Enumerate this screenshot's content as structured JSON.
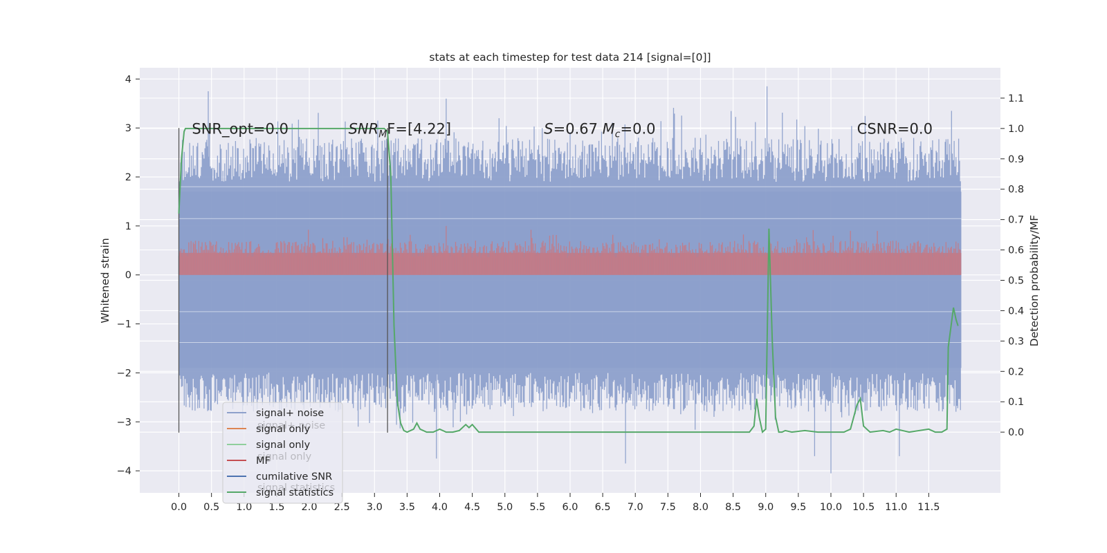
{
  "chart_data": {
    "type": "line",
    "title": "stats at each timestep for test data 214 [signal=[0]]",
    "ylabel_left": "Whitened strain",
    "ylabel_right": "Detection probability/MF",
    "xlabel": "",
    "xlim": [
      -0.6,
      12.6
    ],
    "ylim_left": [
      -4.45,
      4.23
    ],
    "ylim_right": [
      -0.2,
      1.2
    ],
    "x_ticks": [
      "0.0",
      "0.5",
      "1.0",
      "1.5",
      "2.0",
      "2.5",
      "3.0",
      "3.5",
      "4.0",
      "4.5",
      "5.0",
      "5.5",
      "6.0",
      "6.5",
      "7.0",
      "7.5",
      "8.0",
      "8.5",
      "9.0",
      "9.5",
      "10.0",
      "10.5",
      "11.0",
      "11.5"
    ],
    "y_ticks_left": [
      "4",
      "3",
      "2",
      "1",
      "0",
      "−1",
      "−2",
      "−3",
      "−4"
    ],
    "y_ticks_right": [
      "1.1",
      "1.0",
      "0.9",
      "0.8",
      "0.7",
      "0.6",
      "0.5",
      "0.4",
      "0.3",
      "0.2",
      "0.1",
      "0.0"
    ],
    "grid": true,
    "legend_position": "lower-left",
    "annotations": [
      {
        "text": "SNR_opt=0.0",
        "x": 0.2
      },
      {
        "text": "SNR",
        "sub": "M",
        "suffix": "F=[4.22]",
        "x": 2.6
      },
      {
        "text": "S=0.67   M",
        "sub": "c",
        "suffix": "=0.0",
        "x": 5.6
      },
      {
        "text": "CSNR=0.0",
        "x": 10.4
      }
    ],
    "vertical_markers": [
      0.0,
      3.2
    ],
    "legend": [
      {
        "label": "signal+ noise",
        "color": "#8da0cb"
      },
      {
        "label": "signal only",
        "color": "#dd8452"
      },
      {
        "label": "signal only",
        "color": "#8fcf9c"
      },
      {
        "label": "MF",
        "color": "#c44e52"
      },
      {
        "label": "cumilative SNR",
        "color": "#4c72b0"
      },
      {
        "label": "signal statistics",
        "color": "#55a868"
      }
    ],
    "legend_ghost_labels": [
      "signal+ noise",
      "signal only",
      "signal statistics"
    ],
    "series": [
      {
        "name": "signal+ noise",
        "axis": "left",
        "color": "#8da0cb",
        "x_range": [
          0.0,
          12.0
        ],
        "band": [
          -2.3,
          2.2
        ],
        "spike_peaks": [
          [
            0.45,
            3.75
          ],
          [
            3.05,
            3.15
          ],
          [
            4.1,
            3.6
          ],
          [
            9.02,
            3.85
          ],
          [
            11.85,
            3.35
          ],
          [
            6.85,
            -3.85
          ],
          [
            10.0,
            -4.05
          ],
          [
            3.95,
            -3.75
          ],
          [
            9.75,
            -3.7
          ],
          [
            11.05,
            -3.7
          ],
          [
            2.75,
            -3.1
          ]
        ]
      },
      {
        "name": "MF",
        "axis": "left",
        "color": "#c44e52",
        "x_range": [
          0.0,
          12.0
        ],
        "band": [
          0.0,
          0.6
        ],
        "spike_peaks": [
          [
            4.1,
            1.0
          ],
          [
            5.4,
            0.92
          ],
          [
            10.3,
            0.9
          ]
        ]
      },
      {
        "name": "signal statistics",
        "axis": "right",
        "color": "#55a868",
        "x": [
          0.0,
          0.04,
          0.08,
          0.1,
          0.2,
          0.5,
          1.0,
          1.5,
          2.0,
          2.5,
          3.0,
          3.1,
          3.15,
          3.2,
          3.25,
          3.3,
          3.35,
          3.4,
          3.45,
          3.5,
          3.6,
          3.65,
          3.7,
          3.8,
          3.9,
          4.0,
          4.1,
          4.2,
          4.3,
          4.4,
          4.45,
          4.5,
          4.6,
          5.0,
          6.0,
          7.0,
          8.0,
          8.5,
          8.75,
          8.82,
          8.86,
          8.9,
          8.95,
          9.0,
          9.05,
          9.1,
          9.15,
          9.2,
          9.25,
          9.3,
          9.4,
          9.6,
          9.8,
          10.0,
          10.2,
          10.3,
          10.4,
          10.45,
          10.5,
          10.55,
          10.6,
          10.8,
          10.9,
          11.0,
          11.2,
          11.5,
          11.6,
          11.7,
          11.78,
          11.8,
          11.88,
          11.92,
          11.95
        ],
        "values": [
          0.72,
          0.9,
          0.99,
          1.0,
          1.0,
          1.0,
          1.0,
          1.0,
          1.0,
          1.0,
          1.0,
          1.0,
          1.0,
          0.99,
          0.85,
          0.35,
          0.1,
          0.03,
          0.005,
          0.0,
          0.01,
          0.03,
          0.01,
          0.0,
          0.0,
          0.01,
          0.0,
          0.0,
          0.005,
          0.025,
          0.015,
          0.025,
          0.0,
          0.0,
          0.0,
          0.0,
          0.0,
          0.0,
          0.0,
          0.02,
          0.11,
          0.05,
          0.0,
          0.01,
          0.67,
          0.3,
          0.05,
          0.0,
          0.0,
          0.005,
          0.0,
          0.005,
          0.0,
          0.0,
          0.0,
          0.01,
          0.09,
          0.11,
          0.02,
          0.01,
          0.0,
          0.005,
          0.0,
          0.01,
          0.0,
          0.01,
          0.0,
          0.0,
          0.01,
          0.28,
          0.41,
          0.37,
          0.35
        ]
      }
    ]
  }
}
